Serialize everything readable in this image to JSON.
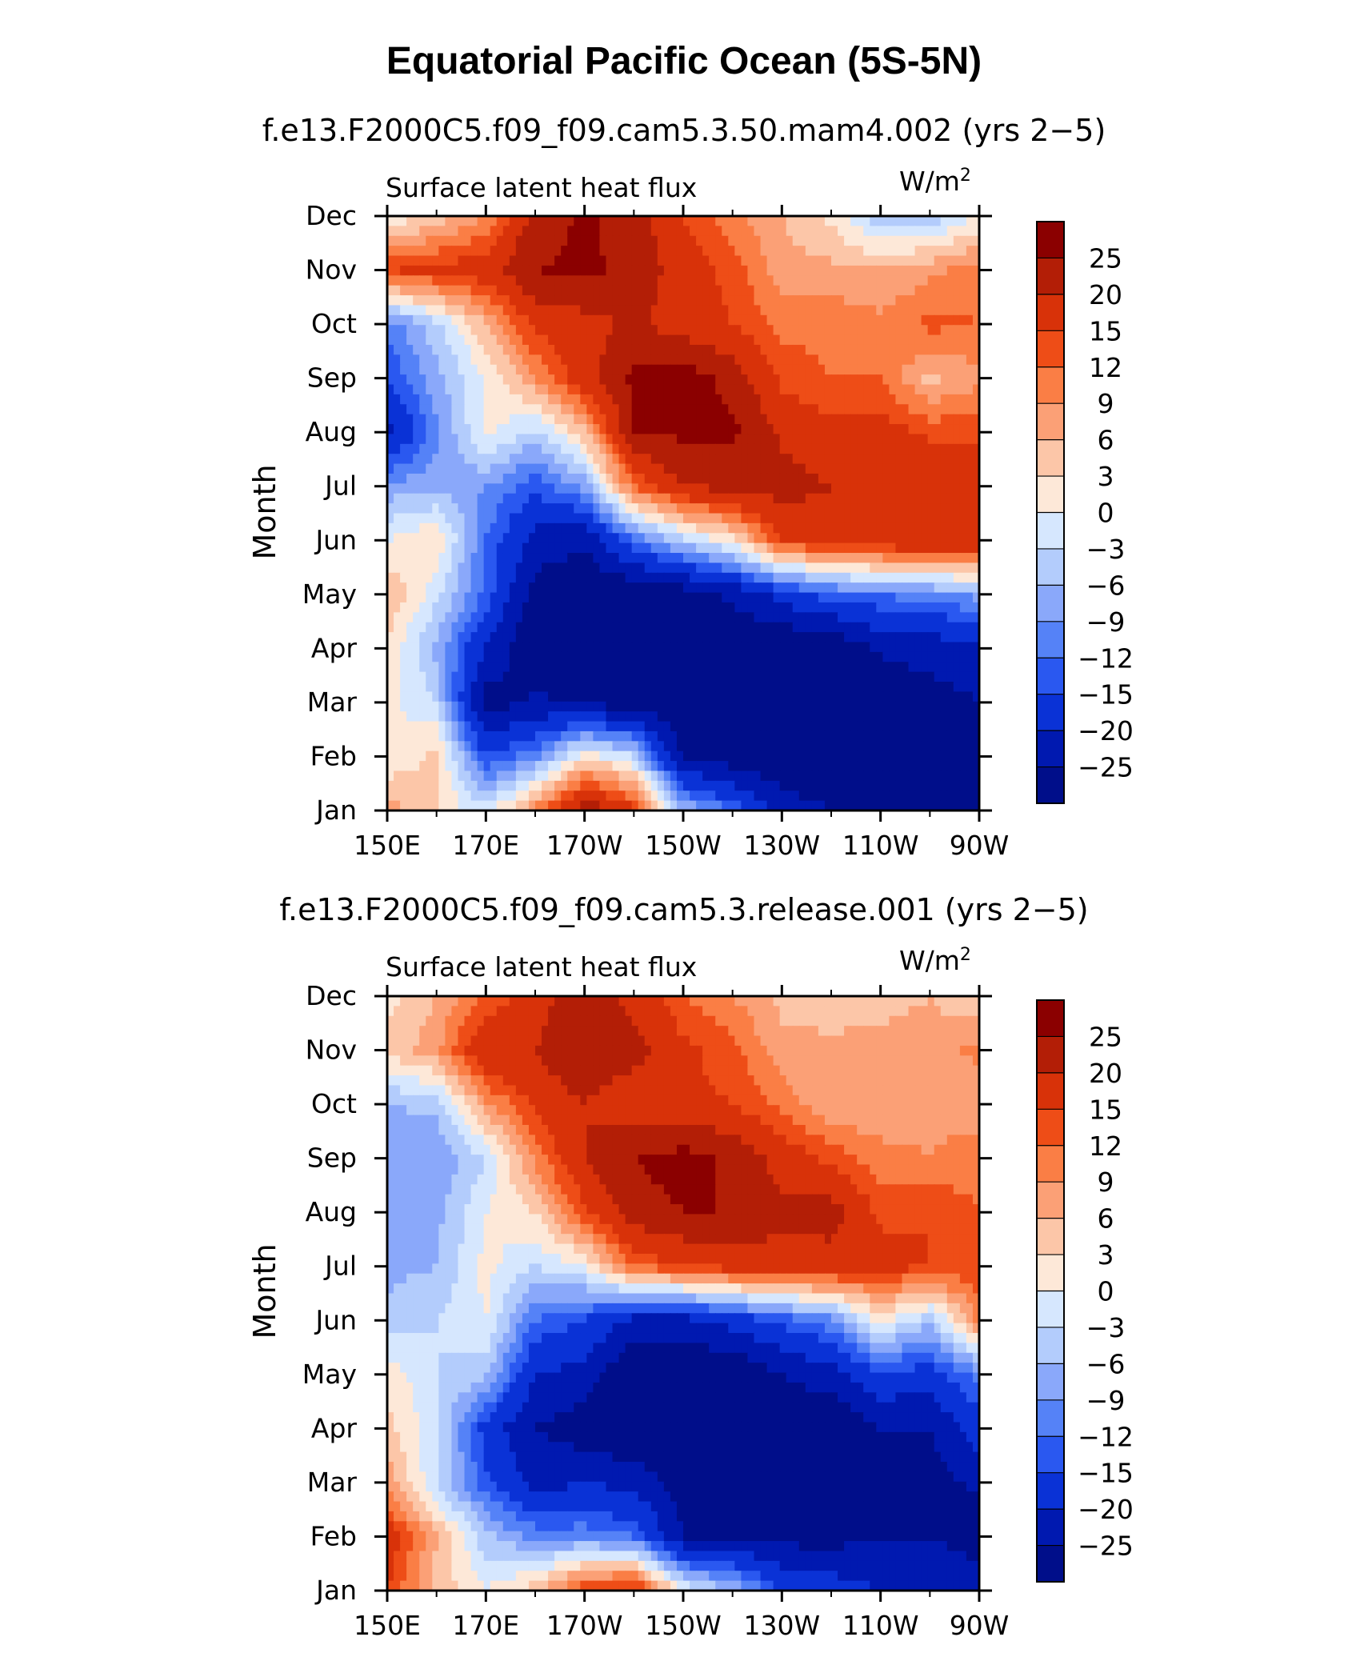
{
  "title": "Equatorial Pacific Ocean (5S-5N)",
  "chart_data": [
    {
      "type": "heatmap",
      "title": "f.e13.F2000C5.f09_f09.cam5.3.50.mam4.002 (yrs 2−5)",
      "left_label": "Surface latent heat flux",
      "units": "W/m",
      "units_sup": "2",
      "ylabel": "Month",
      "xlabel": "",
      "x_ticks": [
        "150E",
        "170E",
        "170W",
        "150W",
        "130W",
        "110W",
        "90W"
      ],
      "x_tick_lons": [
        150,
        170,
        190,
        210,
        230,
        250,
        270
      ],
      "x_range": [
        150,
        270
      ],
      "y_ticks": [
        "Jan",
        "Feb",
        "Mar",
        "Apr",
        "May",
        "Jun",
        "Jul",
        "Aug",
        "Sep",
        "Oct",
        "Nov",
        "Dec"
      ],
      "color_levels": [
        -25,
        -20,
        -15,
        -12,
        -9,
        -6,
        -3,
        0,
        3,
        6,
        9,
        12,
        15,
        20,
        25
      ],
      "field_description": "Longitude (rows, 150E->90W every 10 deg) by month (columns Jan->Dec), approximate values in W/m2",
      "values": [
        [
          8,
          0,
          1,
          3,
          6,
          0,
          -8,
          -22,
          -15,
          -11,
          15,
          0
        ],
        [
          3,
          4,
          -3,
          -7,
          -2,
          3,
          -7,
          -10,
          -7,
          -4,
          16,
          4
        ],
        [
          -2,
          -15,
          -28,
          -20,
          -13,
          -12,
          -9,
          1,
          0,
          6,
          18,
          9
        ],
        [
          10,
          -10,
          -24,
          -30,
          -27,
          -22,
          -14,
          -4,
          9,
          16,
          25,
          22
        ],
        [
          24,
          2,
          -26,
          -30,
          -30,
          -24,
          -8,
          5,
          18,
          18,
          26,
          26
        ],
        [
          16,
          -3,
          -28,
          -30,
          -30,
          -12,
          12,
          25,
          26,
          21,
          24,
          22
        ],
        [
          -6,
          -26,
          -30,
          -30,
          -28,
          -4,
          20,
          26,
          28,
          17,
          17,
          15
        ],
        [
          -12,
          -28,
          -30,
          -30,
          -24,
          2,
          22,
          26,
          23,
          15,
          14,
          10
        ],
        [
          -22,
          -30,
          -30,
          -30,
          -18,
          15,
          22,
          19,
          14,
          11,
          7,
          6
        ],
        [
          -25,
          -30,
          -30,
          -30,
          -13,
          18,
          20,
          16,
          12,
          11,
          7,
          2
        ],
        [
          -25,
          -29,
          -30,
          -24,
          -12,
          19,
          20,
          17,
          12,
          10,
          6,
          -5
        ],
        [
          -25,
          -28,
          -27,
          -23,
          -10,
          20,
          20,
          14,
          5,
          13,
          8,
          -5
        ],
        [
          -25,
          -27,
          -25,
          -22,
          -8,
          20,
          18,
          14,
          8,
          12,
          11,
          0
        ]
      ]
    },
    {
      "type": "heatmap",
      "title": "f.e13.F2000C5.f09_f09.cam5.3.release.001 (yrs 2−5)",
      "left_label": "Surface latent heat flux",
      "units": "W/m",
      "units_sup": "2",
      "ylabel": "Month",
      "xlabel": "",
      "x_ticks": [
        "150E",
        "170E",
        "170W",
        "150W",
        "130W",
        "110W",
        "90W"
      ],
      "x_tick_lons": [
        150,
        170,
        190,
        210,
        230,
        250,
        270
      ],
      "x_range": [
        150,
        270
      ],
      "y_ticks": [
        "Jan",
        "Feb",
        "Mar",
        "Apr",
        "May",
        "Jun",
        "Jul",
        "Aug",
        "Sep",
        "Oct",
        "Nov",
        "Dec"
      ],
      "color_levels": [
        -25,
        -20,
        -15,
        -12,
        -9,
        -6,
        -3,
        0,
        3,
        6,
        9,
        12,
        15,
        20,
        25
      ],
      "field_description": "Longitude (rows, 150E->90W every 10 deg) by month (columns Jan->Dec), approximate values in W/m2",
      "values": [
        [
          15,
          18,
          8,
          4,
          2,
          -5,
          -7,
          -8,
          -9,
          -6,
          4,
          2
        ],
        [
          5,
          6,
          -3,
          -2,
          -3,
          -3,
          -6,
          -7,
          -9,
          -5,
          8,
          6
        ],
        [
          0,
          -5,
          -14,
          -17,
          -5,
          0,
          1,
          0,
          -3,
          8,
          20,
          12
        ],
        [
          5,
          -10,
          -22,
          -25,
          -20,
          -12,
          -3,
          3,
          10,
          16,
          20,
          17
        ],
        [
          15,
          -10,
          -20,
          -28,
          -22,
          -15,
          0,
          14,
          20,
          20,
          25,
          25
        ],
        [
          18,
          -12,
          -22,
          -30,
          -30,
          -22,
          12,
          23,
          25,
          16,
          22,
          18
        ],
        [
          0,
          -25,
          -27,
          -30,
          -30,
          -22,
          15,
          25,
          27,
          16,
          16,
          12
        ],
        [
          -6,
          -25,
          -27,
          -30,
          -30,
          -18,
          17,
          25,
          24,
          15,
          13,
          9
        ],
        [
          -15,
          -27,
          -27,
          -30,
          -25,
          -14,
          18,
          21,
          18,
          11,
          7,
          5
        ],
        [
          -17,
          -27,
          -27,
          -30,
          -22,
          -10,
          18,
          22,
          14,
          6,
          7,
          4
        ],
        [
          -20,
          -25,
          -27,
          -25,
          -16,
          1,
          17,
          14,
          10,
          7,
          7,
          5
        ],
        [
          -20,
          -25,
          -27,
          -25,
          -17,
          -5,
          15,
          15,
          9,
          8,
          7,
          6
        ],
        [
          -22,
          -28,
          -24,
          -17,
          -11,
          10,
          14,
          12,
          11,
          7,
          10,
          3
        ]
      ]
    }
  ],
  "colorbar": {
    "labels": [
      "25",
      "20",
      "15",
      "12",
      "9",
      "6",
      "3",
      "0",
      "−3",
      "−6",
      "−9",
      "−12",
      "−15",
      "−20",
      "−25"
    ],
    "colors": [
      "#8b0000",
      "#b31e06",
      "#d83209",
      "#ee4d17",
      "#fa7e45",
      "#fba076",
      "#fcc6a8",
      "#fde8d8",
      "#d6e7fe",
      "#b3ccfc",
      "#8aa8fa",
      "#5582f7",
      "#2a58f0",
      "#0a32d6",
      "#0019b0",
      "#000e8a"
    ]
  }
}
